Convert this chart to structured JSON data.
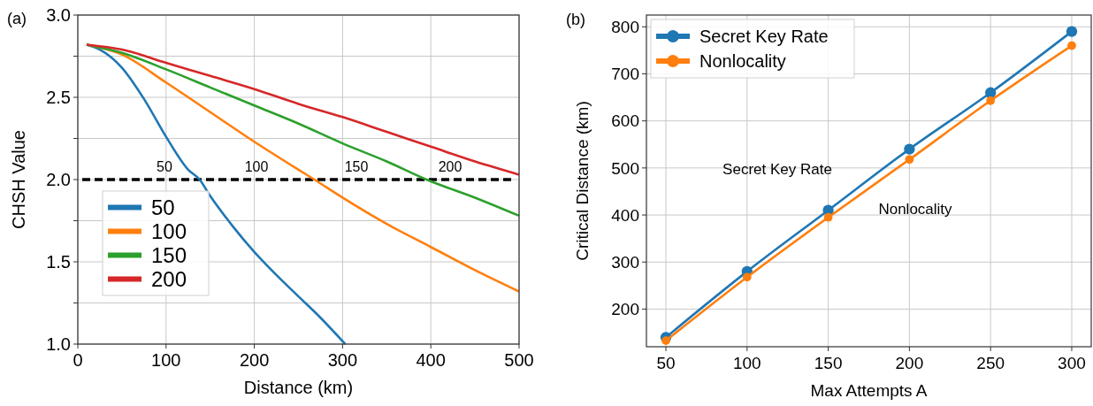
{
  "chart_data": [
    {
      "type": "line",
      "title": "(a)",
      "xlabel": "Distance (km)",
      "ylabel": "CHSH Value",
      "xlim": [
        0,
        500
      ],
      "ylim": [
        1.0,
        3.0
      ],
      "xticks": [
        0,
        100,
        200,
        300,
        400,
        500
      ],
      "yticks": [
        {
          "value": 1.0,
          "label": "1.0"
        },
        {
          "value": 1.25,
          "label": null
        },
        {
          "value": 1.5,
          "label": "1.5"
        },
        {
          "value": 1.75,
          "label": null
        },
        {
          "value": 2.0,
          "label": "2.0"
        },
        {
          "value": 2.25,
          "label": null
        },
        {
          "value": 2.5,
          "label": "2.5"
        },
        {
          "value": 2.75,
          "label": null
        },
        {
          "value": 3.0,
          "label": "3.0"
        }
      ],
      "grid": true,
      "legend": "bottom left",
      "marker": "none",
      "line_style": "solid",
      "series": [
        {
          "name": "50",
          "color": "#1f77b4",
          "x": [
            10,
            25,
            50,
            75,
            100,
            125,
            138,
            150,
            175,
            200,
            225,
            250,
            275,
            303
          ],
          "values": [
            2.82,
            2.79,
            2.68,
            2.49,
            2.26,
            2.06,
            2.0,
            1.9,
            1.72,
            1.56,
            1.42,
            1.29,
            1.16,
            1.0
          ]
        },
        {
          "name": "100",
          "color": "#ff7f0e",
          "x": [
            10,
            50,
            100,
            150,
            200,
            250,
            268,
            300,
            350,
            400,
            450,
            500
          ],
          "values": [
            2.82,
            2.76,
            2.59,
            2.41,
            2.23,
            2.06,
            2.0,
            1.89,
            1.73,
            1.59,
            1.45,
            1.32
          ]
        },
        {
          "name": "150",
          "color": "#2ca02c",
          "x": [
            10,
            50,
            100,
            150,
            200,
            250,
            300,
            350,
            395,
            450,
            500
          ],
          "values": [
            2.82,
            2.77,
            2.67,
            2.56,
            2.45,
            2.34,
            2.22,
            2.11,
            2.0,
            1.89,
            1.78
          ]
        },
        {
          "name": "200",
          "color": "#d62728",
          "x": [
            10,
            50,
            100,
            150,
            200,
            250,
            300,
            350,
            400,
            450,
            500
          ],
          "values": [
            2.82,
            2.79,
            2.71,
            2.63,
            2.55,
            2.46,
            2.38,
            2.29,
            2.2,
            2.11,
            2.03
          ]
        }
      ],
      "ref_lines": [
        {
          "axis": "y",
          "value": 2.0,
          "color": "#000000",
          "line_style": "dashed"
        }
      ],
      "annotations": [
        "50",
        "100",
        "150",
        "200"
      ]
    },
    {
      "type": "line",
      "title": "(b)",
      "xlabel": "Max Attempts A",
      "ylabel": "Critical Distance (km)",
      "xlim": [
        38,
        312
      ],
      "ylim": [
        120,
        825
      ],
      "xticks": [
        50,
        100,
        150,
        200,
        250,
        300
      ],
      "yticks": [
        200,
        300,
        400,
        500,
        600,
        700,
        800
      ],
      "grid": true,
      "legend": "top left",
      "marker": "circle",
      "line_style": "solid",
      "x": [
        50,
        100,
        150,
        200,
        250,
        300
      ],
      "series": [
        {
          "name": "Secret Key Rate",
          "color": "#1f77b4",
          "values": [
            140,
            280,
            410,
            540,
            660,
            790
          ]
        },
        {
          "name": "Nonlocality",
          "color": "#ff7f0e",
          "values": [
            133,
            268,
            395,
            518,
            643,
            760
          ]
        }
      ],
      "annotations": [
        "Secret Key Rate",
        "Nonlocality"
      ]
    }
  ]
}
